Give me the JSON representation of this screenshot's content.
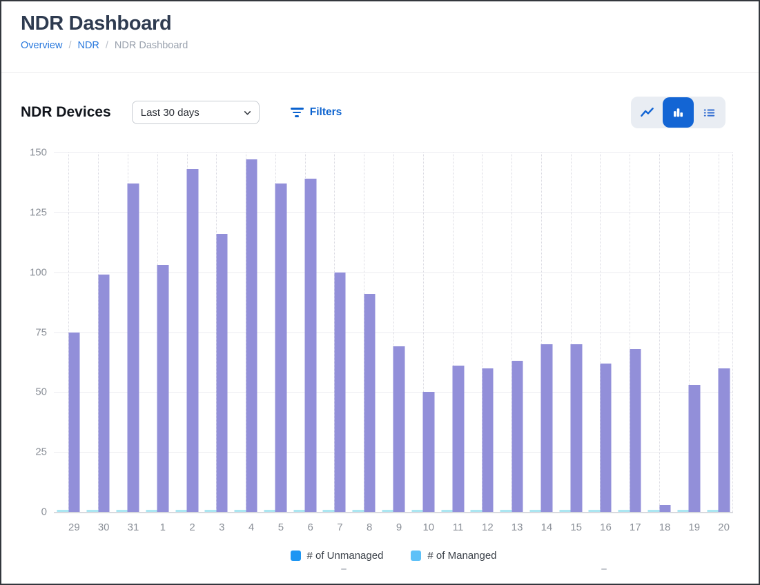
{
  "page": {
    "title": "NDR Dashboard",
    "breadcrumb": [
      {
        "label": "Overview"
      },
      {
        "label": "NDR"
      },
      {
        "label": "NDR Dashboard"
      }
    ],
    "breadcrumb_separator": "/"
  },
  "panel": {
    "title": "NDR Devices",
    "range_select": {
      "value": "Last 30 days"
    },
    "filters_label": "Filters",
    "view_toggle": [
      {
        "name": "line-chart-view",
        "active": false
      },
      {
        "name": "bar-chart-view",
        "active": true
      },
      {
        "name": "list-view",
        "active": false
      }
    ]
  },
  "chart_data": {
    "type": "bar",
    "title": "NDR Devices",
    "categories": [
      "29",
      "30",
      "31",
      "1",
      "2",
      "3",
      "4",
      "5",
      "6",
      "7",
      "8",
      "9",
      "10",
      "11",
      "12",
      "13",
      "14",
      "15",
      "16",
      "17",
      "18",
      "19",
      "20"
    ],
    "series": [
      {
        "name": "# of Mananged",
        "bar_color": "#abe6f1",
        "values": [
          1,
          1,
          1,
          1,
          1,
          1,
          1,
          1,
          1,
          1,
          1,
          1,
          1,
          1,
          1,
          1,
          1,
          1,
          1,
          1,
          1,
          1,
          1
        ]
      },
      {
        "name": "# of Unmanaged",
        "bar_color": "#928fd9",
        "values": [
          75,
          99,
          137,
          103,
          143,
          116,
          147,
          137,
          139,
          100,
          91,
          69,
          50,
          61,
          60,
          63,
          70,
          70,
          62,
          68,
          3,
          53,
          60
        ]
      }
    ],
    "legend": [
      {
        "label": "# of Unmanaged",
        "color": "#1e96f3"
      },
      {
        "label": "# of Mananged",
        "color": "#5ec1f8"
      }
    ],
    "ylim": [
      0,
      150
    ],
    "yticks": [
      0,
      25,
      50,
      75,
      100,
      125,
      150
    ],
    "grid": true,
    "legend_position": "bottom",
    "xlabel": "",
    "ylabel": ""
  },
  "colors": {
    "accent_blue": "#1365d4",
    "link_blue": "#2878dd",
    "filters_blue": "#0a62cf",
    "bar_unmanaged": "#928fd9",
    "bar_managed": "#abe6f1",
    "legend_unmanaged": "#1e96f3",
    "legend_managed": "#5ec1f8"
  }
}
